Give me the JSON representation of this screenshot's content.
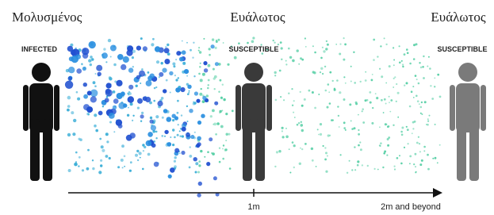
{
  "figures": [
    {
      "greek": "Μολυσμένος",
      "english": "INFECTED"
    },
    {
      "greek": "Ευάλωτος",
      "english": "SUSCEPTIBLE"
    },
    {
      "greek": "Ευάλωτος",
      "english": "SUSCEPTIBLE"
    }
  ],
  "axis": {
    "labels": [
      "1m",
      "2m and beyond"
    ]
  }
}
